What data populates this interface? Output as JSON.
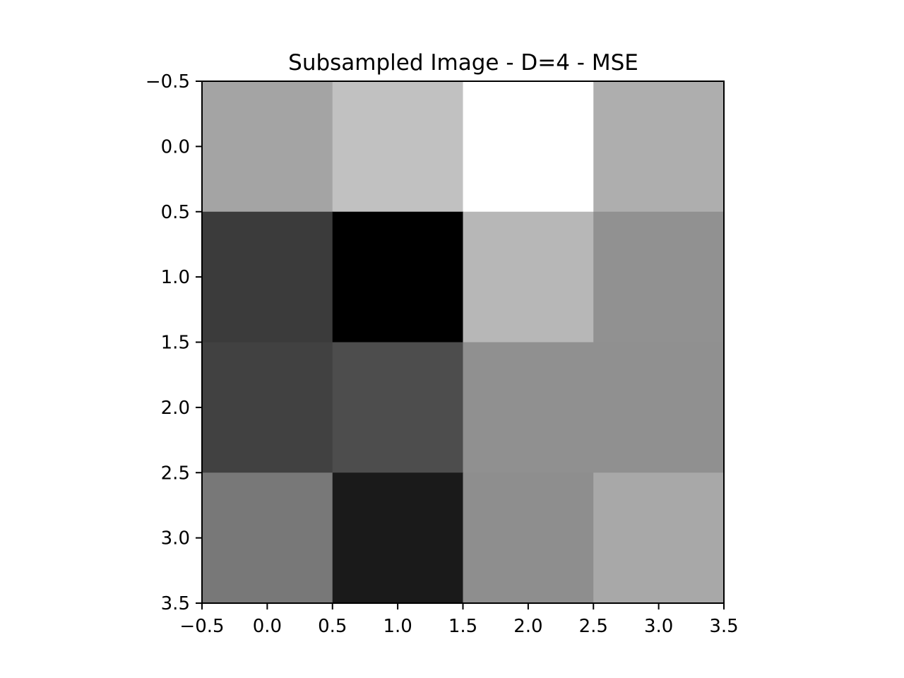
{
  "chart_data": {
    "type": "heatmap",
    "title": "Subsampled Image - D=4 - MSE",
    "xlabel": "",
    "ylabel": "",
    "colormap": "gray",
    "xlim": [
      -0.5,
      3.5
    ],
    "ylim": [
      3.5,
      -0.5
    ],
    "y_axis_inverted": true,
    "grid": false,
    "legend": "none",
    "values": [
      [
        164,
        193,
        255,
        174
      ],
      [
        59,
        0,
        183,
        145
      ],
      [
        65,
        77,
        144,
        144
      ],
      [
        120,
        26,
        142,
        168
      ]
    ],
    "xticks": [
      "−0.5",
      "0.0",
      "0.5",
      "1.0",
      "1.5",
      "2.0",
      "2.5",
      "3.0",
      "3.5"
    ],
    "yticks": [
      "−0.5",
      "0.0",
      "0.5",
      "1.0",
      "1.5",
      "2.0",
      "2.5",
      "3.0",
      "3.5"
    ],
    "xtick_values": [
      -0.5,
      0.0,
      0.5,
      1.0,
      1.5,
      2.0,
      2.5,
      3.0,
      3.5
    ],
    "ytick_values": [
      -0.5,
      0.0,
      0.5,
      1.0,
      1.5,
      2.0,
      2.5,
      3.0,
      3.5
    ]
  }
}
